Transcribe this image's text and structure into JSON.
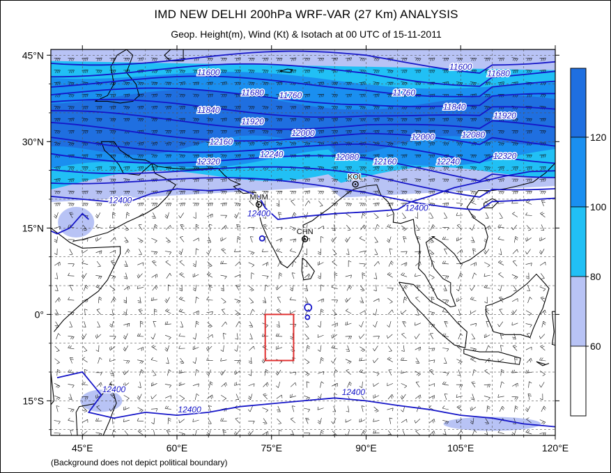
{
  "title": "IMD NEW DELHI 200hPa WRF-VAR (27 Km) ANALYSIS",
  "subtitle": "Geop. Height(m), Wind (Kt) & Isotach  at 00 UTC of 15-11-2011",
  "footnote": "(Background does not depict political boundary)",
  "lat_ticks": [
    {
      "value": 45,
      "label": "45°N"
    },
    {
      "value": 30,
      "label": "30°N"
    },
    {
      "value": 15,
      "label": "15°N"
    },
    {
      "value": 0,
      "label": "0°"
    },
    {
      "value": -15,
      "label": "15°S"
    }
  ],
  "lon_ticks": [
    {
      "value": 45,
      "label": "45°E"
    },
    {
      "value": 60,
      "label": "60°E"
    },
    {
      "value": 75,
      "label": "75°E"
    },
    {
      "value": 90,
      "label": "90°E"
    },
    {
      "value": 105,
      "label": "105°E"
    },
    {
      "value": 120,
      "label": "120°E"
    }
  ],
  "extent": {
    "lon_min": 40,
    "lon_max": 120,
    "lat_min": -21,
    "lat_max": 46
  },
  "colorbar": {
    "ticks": [
      "120",
      "100",
      "80",
      "60"
    ],
    "bands": [
      {
        "range": "above 120",
        "color": "#1f6fe0"
      },
      {
        "range": "100-120",
        "color": "#1a8ff0"
      },
      {
        "range": "80-100",
        "color": "#21c0f5"
      },
      {
        "range": "60-80",
        "color": "#b8c3f5"
      },
      {
        "range": "below 60",
        "color": "#ffffff"
      }
    ]
  },
  "contour_labels": [
    "11600",
    "11680",
    "11760",
    "11840",
    "11920",
    "12000",
    "12080",
    "12160",
    "12240",
    "12320",
    "12400"
  ],
  "contour_label_placements": [
    {
      "text": "11600",
      "lon": 65,
      "lat": 42
    },
    {
      "text": "11680",
      "lon": 72,
      "lat": 38.5
    },
    {
      "text": "11760",
      "lon": 78,
      "lat": 38
    },
    {
      "text": "11840",
      "lon": 65,
      "lat": 35.5
    },
    {
      "text": "11920",
      "lon": 72,
      "lat": 33.5
    },
    {
      "text": "12000",
      "lon": 80,
      "lat": 31.5
    },
    {
      "text": "12160",
      "lon": 67,
      "lat": 30
    },
    {
      "text": "12240",
      "lon": 75,
      "lat": 27.8
    },
    {
      "text": "12320",
      "lon": 65,
      "lat": 26.5
    },
    {
      "text": "12080",
      "lon": 87,
      "lat": 27.3
    },
    {
      "text": "12160",
      "lon": 93,
      "lat": 26.5
    },
    {
      "text": "12400",
      "lon": 51,
      "lat": 19.8
    },
    {
      "text": "12400",
      "lon": 73,
      "lat": 17.5
    },
    {
      "text": "12400",
      "lon": 98,
      "lat": 18.5
    },
    {
      "text": "11600",
      "lon": 105,
      "lat": 43
    },
    {
      "text": "11680",
      "lon": 111,
      "lat": 41.8
    },
    {
      "text": "11760",
      "lon": 96,
      "lat": 38.5
    },
    {
      "text": "11840",
      "lon": 104,
      "lat": 36
    },
    {
      "text": "11920",
      "lon": 112,
      "lat": 34.5
    },
    {
      "text": "12000",
      "lon": 99,
      "lat": 30.8
    },
    {
      "text": "12080",
      "lon": 107,
      "lat": 31.2
    },
    {
      "text": "12240",
      "lon": 103,
      "lat": 26.5
    },
    {
      "text": "12320",
      "lon": 112,
      "lat": 27.5
    },
    {
      "text": "12400",
      "lon": 50,
      "lat": -13
    },
    {
      "text": "12400",
      "lon": 62,
      "lat": -16.5
    },
    {
      "text": "12400",
      "lon": 88,
      "lat": -13.5
    }
  ],
  "cities": [
    {
      "label": "MUM",
      "lon": 73,
      "lat": 19.1
    },
    {
      "label": "CHN",
      "lon": 80.3,
      "lat": 13.1
    },
    {
      "label": "KOL",
      "lon": 88.3,
      "lat": 22.6
    }
  ],
  "highlight_box": {
    "lon_min": 74,
    "lon_max": 78.5,
    "lat_min": -8,
    "lat_max": 0
  }
}
